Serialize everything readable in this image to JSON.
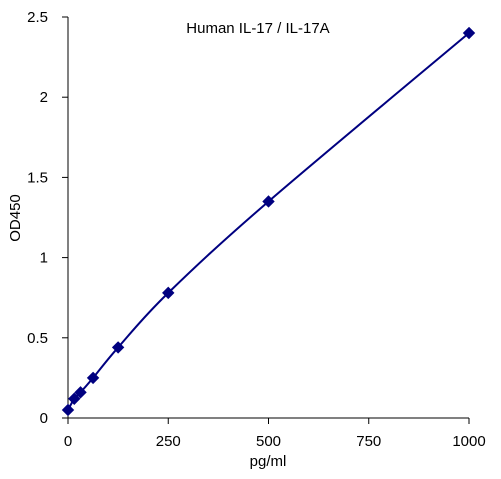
{
  "chart_data": {
    "type": "line",
    "title": "Human IL-17 / IL-17A",
    "xlabel": "pg/ml",
    "ylabel": "OD450",
    "xlim": [
      0,
      1000
    ],
    "ylim": [
      0,
      2.5
    ],
    "xticks": [
      0,
      250,
      500,
      750,
      1000
    ],
    "xtick_labels": [
      "0",
      "250",
      "500",
      "750",
      "1000"
    ],
    "yticks": [
      0,
      0.5,
      1,
      1.5,
      2,
      2.5
    ],
    "ytick_labels": [
      "0",
      "0.5",
      "1",
      "1.5",
      "2",
      "2.5"
    ],
    "grid": false,
    "legend": "none",
    "series": [
      {
        "x": [
          0,
          15.6,
          31.25,
          62.5,
          125,
          250,
          500,
          1000
        ],
        "y": [
          0.05,
          0.12,
          0.16,
          0.25,
          0.44,
          0.78,
          1.35,
          2.4
        ],
        "color": "#000080",
        "marker": "diamond"
      }
    ]
  }
}
